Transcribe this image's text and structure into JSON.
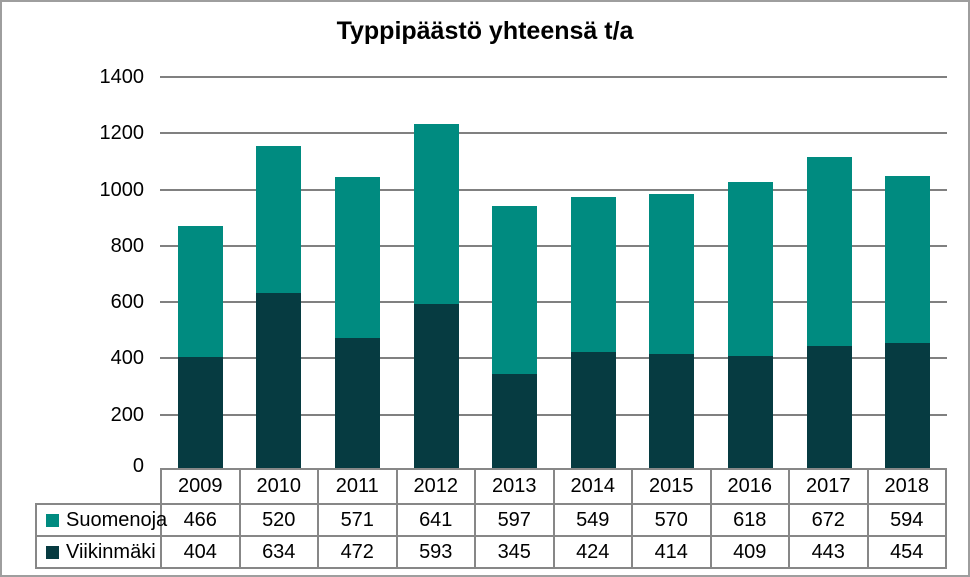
{
  "page": {
    "background": "#FFFFFF",
    "frame_border_color": "#9E9E9E"
  },
  "chart_data": {
    "type": "bar",
    "stacked": true,
    "title": "Typpipäästö yhteensä t/a",
    "categories": [
      "2009",
      "2010",
      "2011",
      "2012",
      "2013",
      "2014",
      "2015",
      "2016",
      "2017",
      "2018"
    ],
    "series": [
      {
        "name": "Suomenoja",
        "color": "#008B80",
        "values": [
          466,
          520,
          571,
          641,
          597,
          549,
          570,
          618,
          672,
          594
        ]
      },
      {
        "name": "Viikinmäki",
        "color": "#063B41",
        "values": [
          404,
          634,
          472,
          593,
          345,
          424,
          414,
          409,
          443,
          454
        ]
      }
    ],
    "stack_order_bottom_to_top": [
      "Viikinmäki",
      "Suomenoja"
    ],
    "xlabel": "",
    "ylabel": "",
    "ylim": [
      0,
      1400
    ],
    "yticks": [
      0,
      200,
      400,
      600,
      800,
      1000,
      1200,
      1400
    ],
    "grid": true,
    "gridline_color": "#808080",
    "legend_position": "table-left",
    "table_border_color": "#878787",
    "text_color": "#000000"
  }
}
